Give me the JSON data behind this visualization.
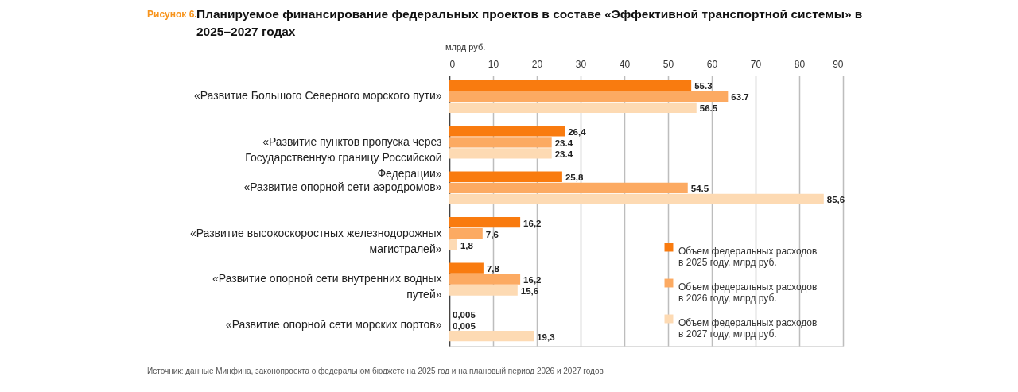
{
  "chart_data": {
    "type": "bar",
    "orientation": "horizontal",
    "title": "Планируемое финансирование федеральных проектов в составе «Эффективной транспортной системы» в 2025–2027 годах",
    "xlabel": "млрд руб.",
    "categories": [
      "«Развитие Большого Северного морского пути»",
      "«Развитие пунктов пропуска через Государственную границу Российской Федерации»",
      "«Развитие опорной сети аэродромов»",
      "«Развитие высокоскоростных железнодорожных магистралей»",
      "«Развитие опорной сети внутренних водных путей»",
      "«Развитие опорной сети морских портов»"
    ],
    "series": [
      {
        "name": "Объем федеральных расходов в 2025 году, млрд руб.",
        "color": "#f97b0f",
        "values": [
          55.3,
          26.4,
          25.8,
          16.2,
          7.8,
          0.005
        ],
        "value_labels": [
          "55.3",
          "26,4",
          "25,8",
          "16,2",
          "7,8",
          "0,005"
        ]
      },
      {
        "name": "Объем федеральных расходов в 2026 году, млрд руб.",
        "color": "#fcaa62",
        "values": [
          63.7,
          23.4,
          54.5,
          7.6,
          16.2,
          0.005
        ],
        "value_labels": [
          "63.7",
          "23.4",
          "54.5",
          "7,6",
          "16,2",
          "0,005"
        ]
      },
      {
        "name": "Объем федеральных расходов в 2027 году, млрд руб.",
        "color": "#fddab3",
        "values": [
          56.5,
          23.4,
          85.6,
          1.8,
          15.6,
          19.3
        ],
        "value_labels": [
          "56.5",
          "23.4",
          "85,6",
          "1,8",
          "15,6",
          "19,3"
        ]
      }
    ],
    "xlim": [
      0,
      90
    ],
    "xticks": [
      0,
      10,
      20,
      30,
      40,
      50,
      60,
      70,
      80,
      90
    ],
    "grid": "x",
    "legend": "bottom right",
    "annotations": [
      "Рисунок 6.",
      "Источник: данные Минфина, законопроекта о федеральном бюджете на 2025 год и на плановый период 2026 и 2027 годов"
    ]
  }
}
